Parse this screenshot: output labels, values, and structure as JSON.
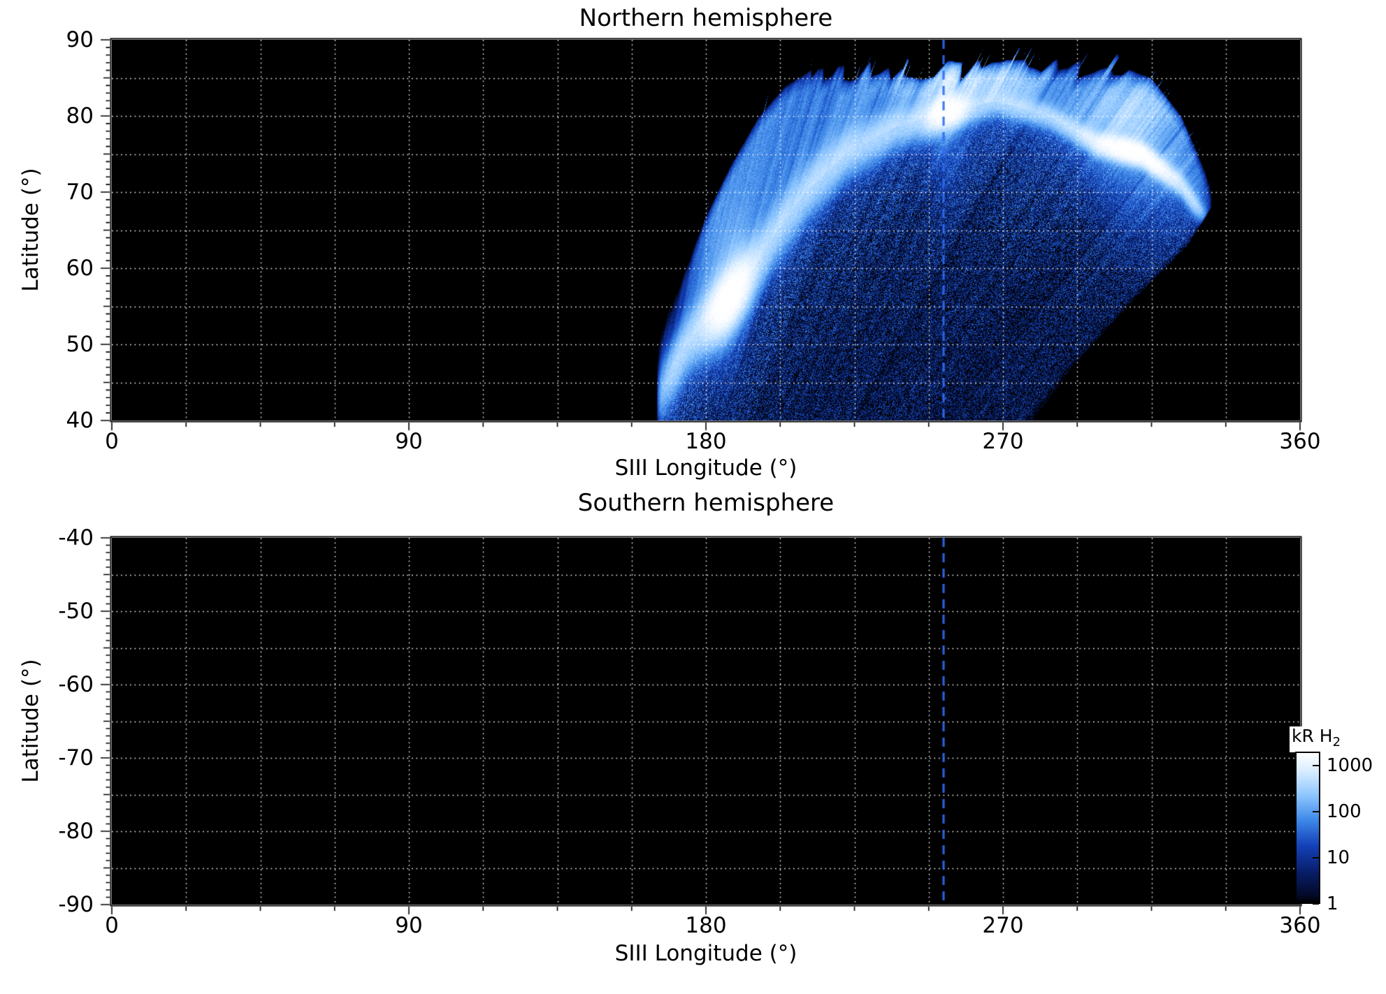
{
  "figure": {
    "background_color": "#ffffff",
    "text_color": "#000000",
    "plot_background": "#000000",
    "grid_color": "#ffffff",
    "reference_line_color": "#2e6cf5"
  },
  "chart_data": [
    {
      "type": "heatmap",
      "title": "Northern hemisphere",
      "xlabel": "SIII Longitude (°)",
      "ylabel": "Latitude (°)",
      "xlim": [
        0,
        360
      ],
      "ylim": [
        40,
        90
      ],
      "xticks": [
        "0",
        "90",
        "180",
        "270",
        "360"
      ],
      "yticks": [
        "90",
        "80",
        "70",
        "60",
        "50",
        "40"
      ],
      "grid": {
        "style": "dotted",
        "color": "#ffffff",
        "lon_step_deg": 22.5,
        "lat_step_deg": 5
      },
      "units": "kR H2",
      "scale": "log",
      "reference_line_lon": 252,
      "coverage": {
        "lon_min": 165,
        "lon_max": 335,
        "lat_min": 40,
        "lat_max": 88
      },
      "auroral_arc": [
        [
          164,
          42
        ],
        [
          169,
          46
        ],
        [
          174,
          50
        ],
        [
          180,
          53
        ],
        [
          186,
          55.5
        ],
        [
          193,
          59
        ],
        [
          200,
          64
        ],
        [
          210,
          70
        ],
        [
          222,
          75
        ],
        [
          237,
          78.5
        ],
        [
          252,
          80.5
        ],
        [
          268,
          82
        ],
        [
          284,
          80
        ],
        [
          298,
          76.5
        ],
        [
          312,
          75
        ],
        [
          324,
          71
        ],
        [
          332,
          66
        ],
        [
          338,
          60
        ]
      ],
      "hotspots": [
        {
          "lon": 187,
          "lat": 55.5,
          "peak_kR": 1000,
          "sigma_lon": 5.5
        },
        {
          "lon": 253,
          "lat": 80.5,
          "peak_kR": 900,
          "sigma_lon": 5
        },
        {
          "lon": 309,
          "lat": 75,
          "peak_kR": 950,
          "sigma_lon": 10
        }
      ],
      "diffuse_patches": [
        {
          "lon": 258,
          "lat": 85.3,
          "kR": 300,
          "sigma_lon": 18,
          "sigma_lat": 2.6
        },
        {
          "lon": 313,
          "lat": 81,
          "kR": 150,
          "sigma_lon": 13,
          "sigma_lat": 3.2
        }
      ],
      "coverage_top_boundary": [
        [
          164,
          50
        ],
        [
          172,
          58
        ],
        [
          180,
          67
        ],
        [
          188,
          74
        ],
        [
          196,
          80
        ],
        [
          204,
          84
        ],
        [
          212,
          86.2
        ],
        [
          230,
          87.2
        ],
        [
          300,
          87.6
        ],
        [
          315,
          85
        ],
        [
          324,
          80
        ],
        [
          331,
          73
        ],
        [
          336,
          66
        ],
        [
          340,
          58
        ]
      ],
      "coverage_right_boundary": [
        [
          40,
          279
        ],
        [
          48,
          293
        ],
        [
          56,
          310
        ],
        [
          63,
          326
        ],
        [
          68,
          333
        ],
        [
          75,
          334.5
        ],
        [
          80,
          330
        ],
        [
          84,
          323
        ],
        [
          88,
          314
        ],
        [
          90,
          310
        ]
      ]
    },
    {
      "type": "heatmap",
      "title": "Southern hemisphere",
      "xlabel": "SIII Longitude (°)",
      "ylabel": "Latitude (°)",
      "xlim": [
        0,
        360
      ],
      "ylim": [
        -90,
        -40
      ],
      "xticks": [
        "0",
        "90",
        "180",
        "270",
        "360"
      ],
      "yticks": [
        "-40",
        "-50",
        "-60",
        "-70",
        "-80",
        "-90"
      ],
      "grid": {
        "style": "dotted",
        "color": "#ffffff",
        "lon_step_deg": 22.5,
        "lat_step_deg": 5
      },
      "units": "kR H2",
      "scale": "log",
      "reference_line_lon": 252,
      "no_data": true
    }
  ],
  "colorbar": {
    "label": "kR H",
    "label_sub": "2",
    "scale": "log",
    "ticks": [
      "1000",
      "100",
      "10",
      "1"
    ],
    "gradient_top_to_bottom": [
      "#ffffff",
      "#d9edff",
      "#8fc7ff",
      "#3d88e8",
      "#1441b8",
      "#081d68",
      "#030a28",
      "#000000"
    ]
  }
}
